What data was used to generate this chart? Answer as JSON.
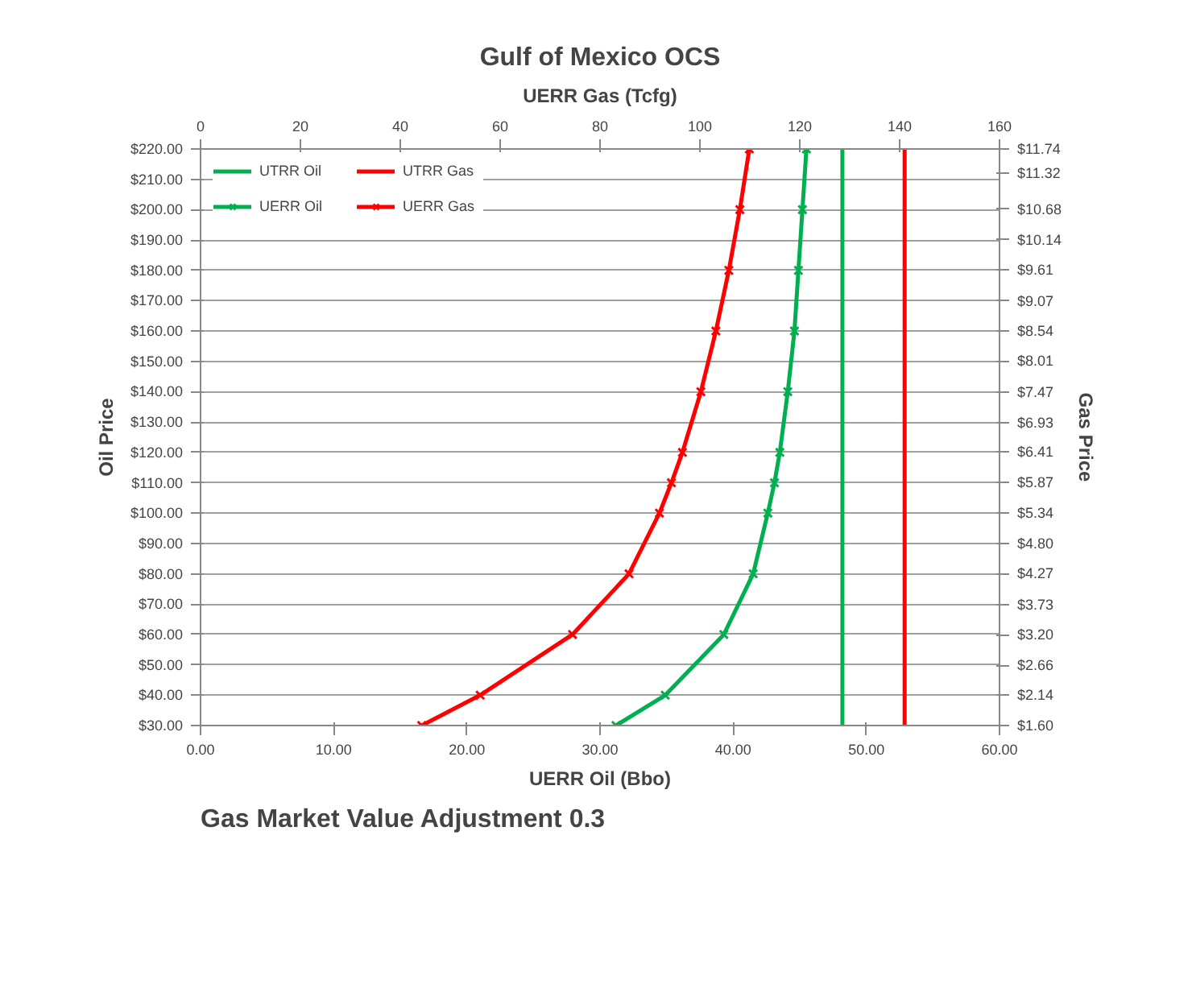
{
  "chart_data": {
    "type": "line",
    "title": "Gulf of Mexico OCS",
    "x2label": "UERR Gas (Tcfg)",
    "xlabel": "UERR Oil (Bbo)",
    "ylabel": "Oil Price",
    "y2label": "Gas Price",
    "annotations": [
      "Gas Market Value Adjustment 0.3"
    ],
    "xlim": [
      0,
      60
    ],
    "xticks": [
      {
        "value": 0,
        "label": "0.00"
      },
      {
        "value": 10,
        "label": "10.00"
      },
      {
        "value": 20,
        "label": "20.00"
      },
      {
        "value": 30,
        "label": "30.00"
      },
      {
        "value": 40,
        "label": "40.00"
      },
      {
        "value": 50,
        "label": "50.00"
      },
      {
        "value": 60,
        "label": "60.00"
      }
    ],
    "x2lim": [
      0,
      160
    ],
    "x2ticks": [
      0,
      20,
      40,
      60,
      80,
      100,
      120,
      140,
      160
    ],
    "ylim": [
      30,
      220
    ],
    "yticks": [
      {
        "value": 30,
        "label": "$30.00"
      },
      {
        "value": 40,
        "label": "$40.00"
      },
      {
        "value": 50,
        "label": "$50.00"
      },
      {
        "value": 60,
        "label": "$60.00"
      },
      {
        "value": 70,
        "label": "$70.00"
      },
      {
        "value": 80,
        "label": "$80.00"
      },
      {
        "value": 90,
        "label": "$90.00"
      },
      {
        "value": 100,
        "label": "$100.00"
      },
      {
        "value": 110,
        "label": "$110.00"
      },
      {
        "value": 120,
        "label": "$120.00"
      },
      {
        "value": 130,
        "label": "$130.00"
      },
      {
        "value": 140,
        "label": "$140.00"
      },
      {
        "value": 150,
        "label": "$150.00"
      },
      {
        "value": 160,
        "label": "$160.00"
      },
      {
        "value": 170,
        "label": "$170.00"
      },
      {
        "value": 180,
        "label": "$180.00"
      },
      {
        "value": 190,
        "label": "$190.00"
      },
      {
        "value": 200,
        "label": "$200.00"
      },
      {
        "value": 210,
        "label": "$210.00"
      },
      {
        "value": 220,
        "label": "$220.00"
      }
    ],
    "y2lim": [
      1.6,
      11.74
    ],
    "y2ticks": [
      {
        "value": 1.6,
        "label": "$1.60"
      },
      {
        "value": 2.14,
        "label": "$2.14"
      },
      {
        "value": 2.66,
        "label": "$2.66"
      },
      {
        "value": 3.2,
        "label": "$3.20"
      },
      {
        "value": 3.73,
        "label": "$3.73"
      },
      {
        "value": 4.27,
        "label": "$4.27"
      },
      {
        "value": 4.8,
        "label": "$4.80"
      },
      {
        "value": 5.34,
        "label": "$5.34"
      },
      {
        "value": 5.87,
        "label": "$5.87"
      },
      {
        "value": 6.41,
        "label": "$6.41"
      },
      {
        "value": 6.93,
        "label": "$6.93"
      },
      {
        "value": 7.47,
        "label": "$7.47"
      },
      {
        "value": 8.01,
        "label": "$8.01"
      },
      {
        "value": 8.54,
        "label": "$8.54"
      },
      {
        "value": 9.07,
        "label": "$9.07"
      },
      {
        "value": 9.61,
        "label": "$9.61"
      },
      {
        "value": 10.14,
        "label": "$10.14"
      },
      {
        "value": 10.68,
        "label": "$10.68"
      },
      {
        "value": 11.32,
        "label": "$11.32"
      },
      {
        "value": 11.74,
        "label": "$11.74"
      }
    ],
    "grid": "y",
    "legend": "top left",
    "line_style": "solid",
    "series": [
      {
        "name": "UTRR Oil",
        "color": "#00b050",
        "marker": "none",
        "x": [
          48.2,
          48.2
        ],
        "values": [
          30,
          220
        ]
      },
      {
        "name": "UERR Oil",
        "color": "#00b050",
        "marker": "cross",
        "x": [
          31.2,
          34.9,
          39.3,
          41.5,
          42.6,
          43.1,
          43.5,
          44.1,
          44.6,
          44.9,
          45.2,
          45.5
        ],
        "values": [
          30,
          40,
          60,
          80,
          100,
          110,
          120,
          140,
          160,
          180,
          200,
          220
        ]
      },
      {
        "name": "UTRR Gas",
        "color": "#ff0000",
        "marker": "none",
        "axis": "x2",
        "x": [
          141,
          141
        ],
        "values": [
          30,
          220
        ]
      },
      {
        "name": "UERR Gas",
        "color": "#ff0000",
        "marker": "cross",
        "axis": "x2",
        "x": [
          44.3,
          56.0,
          74.5,
          85.8,
          91.9,
          94.3,
          96.5,
          100.2,
          103.2,
          105.8,
          108.0,
          109.9
        ],
        "values": [
          30,
          40,
          60,
          80,
          100,
          110,
          120,
          140,
          160,
          180,
          200,
          220
        ]
      }
    ]
  }
}
